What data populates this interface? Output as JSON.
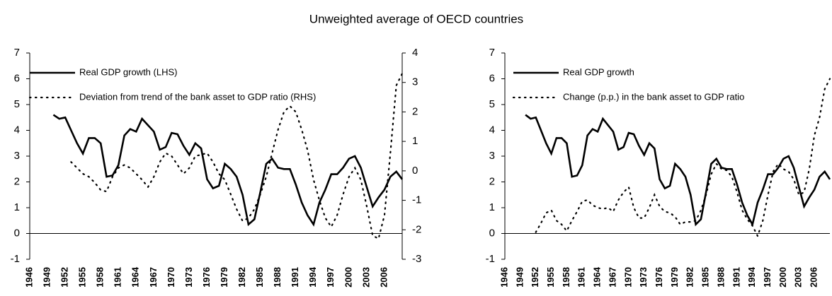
{
  "title": "Unweighted average of OECD countries",
  "chart_data": [
    {
      "type": "line",
      "x": [
        1950,
        1951,
        1952,
        1953,
        1954,
        1955,
        1956,
        1957,
        1958,
        1959,
        1960,
        1961,
        1962,
        1963,
        1964,
        1965,
        1966,
        1967,
        1968,
        1969,
        1970,
        1971,
        1972,
        1973,
        1974,
        1975,
        1976,
        1977,
        1978,
        1979,
        1980,
        1981,
        1982,
        1983,
        1984,
        1985,
        1986,
        1987,
        1988,
        1989,
        1990,
        1991,
        1992,
        1993,
        1994,
        1995,
        1996,
        1997,
        1998,
        1999,
        2000,
        2001,
        2002,
        2003,
        2004,
        2005,
        2006,
        2007,
        2008,
        2009
      ],
      "series": [
        {
          "name": "Real GDP growth (LHS)",
          "color": "#000000",
          "dash": "solid",
          "values": [
            4.6,
            4.45,
            4.5,
            4.0,
            3.5,
            3.1,
            3.7,
            3.7,
            3.5,
            2.2,
            2.25,
            2.65,
            3.8,
            4.05,
            3.95,
            4.45,
            4.2,
            3.95,
            3.25,
            3.35,
            3.9,
            3.85,
            3.4,
            3.05,
            3.5,
            3.3,
            2.1,
            1.75,
            1.85,
            2.7,
            2.5,
            2.2,
            1.5,
            0.35,
            0.55,
            1.6,
            2.7,
            2.9,
            2.55,
            2.5,
            2.5,
            1.9,
            1.2,
            0.7,
            0.35,
            1.2,
            1.7,
            2.3,
            2.3,
            2.55,
            2.9,
            3.0,
            2.55,
            1.8,
            1.05,
            1.4,
            1.7,
            2.2,
            2.4,
            2.1
          ]
        },
        {
          "name": "Deviation from trend of the bank asset to GDP ratio (RHS)",
          "color": "#000000",
          "dash": "dotted",
          "axis": "y2",
          "values": [
            null,
            null,
            null,
            0.3,
            0.1,
            -0.1,
            -0.2,
            -0.4,
            -0.65,
            -0.7,
            -0.2,
            0.1,
            0.2,
            0.1,
            -0.1,
            -0.3,
            -0.55,
            -0.2,
            0.3,
            0.6,
            0.5,
            0.2,
            -0.1,
            0.1,
            0.5,
            0.55,
            0.6,
            0.3,
            -0.1,
            -0.3,
            -0.8,
            -1.3,
            -1.7,
            -1.6,
            -1.3,
            -0.8,
            -0.2,
            0.6,
            1.4,
            2.0,
            2.2,
            2.0,
            1.4,
            0.7,
            -0.3,
            -1.0,
            -1.6,
            -1.9,
            -1.5,
            -0.8,
            -0.2,
            0.1,
            -0.3,
            -1.2,
            -2.2,
            -2.3,
            -1.5,
            0.6,
            2.9,
            3.3
          ]
        }
      ],
      "xlim": [
        1946,
        2009
      ],
      "xticks": [
        1946,
        1949,
        1952,
        1955,
        1958,
        1961,
        1964,
        1967,
        1970,
        1973,
        1976,
        1979,
        1982,
        1985,
        1988,
        1991,
        1994,
        1997,
        2000,
        2003,
        2006
      ],
      "ylim": [
        -1,
        7
      ],
      "yticks": [
        -1,
        0,
        1,
        2,
        3,
        4,
        5,
        6,
        7
      ],
      "y2lim": [
        -3,
        4
      ],
      "y2ticks": [
        -3,
        -2,
        -1,
        0,
        1,
        2,
        3,
        4
      ],
      "legend": "upper left",
      "grid": false
    },
    {
      "type": "line",
      "x": [
        1950,
        1951,
        1952,
        1953,
        1954,
        1955,
        1956,
        1957,
        1958,
        1959,
        1960,
        1961,
        1962,
        1963,
        1964,
        1965,
        1966,
        1967,
        1968,
        1969,
        1970,
        1971,
        1972,
        1973,
        1974,
        1975,
        1976,
        1977,
        1978,
        1979,
        1980,
        1981,
        1982,
        1983,
        1984,
        1985,
        1986,
        1987,
        1988,
        1989,
        1990,
        1991,
        1992,
        1993,
        1994,
        1995,
        1996,
        1997,
        1998,
        1999,
        2000,
        2001,
        2002,
        2003,
        2004,
        2005,
        2006,
        2007,
        2008,
        2009
      ],
      "series": [
        {
          "name": "Real GDP growth",
          "color": "#000000",
          "dash": "solid",
          "values": [
            4.6,
            4.45,
            4.5,
            4.0,
            3.5,
            3.1,
            3.7,
            3.7,
            3.5,
            2.2,
            2.25,
            2.65,
            3.8,
            4.05,
            3.95,
            4.45,
            4.2,
            3.95,
            3.25,
            3.35,
            3.9,
            3.85,
            3.4,
            3.05,
            3.5,
            3.3,
            2.1,
            1.75,
            1.85,
            2.7,
            2.5,
            2.2,
            1.5,
            0.35,
            0.55,
            1.6,
            2.7,
            2.9,
            2.55,
            2.5,
            2.5,
            1.9,
            1.2,
            0.7,
            0.35,
            1.2,
            1.7,
            2.3,
            2.3,
            2.55,
            2.9,
            3.0,
            2.55,
            1.8,
            1.05,
            1.4,
            1.7,
            2.2,
            2.4,
            2.1
          ]
        },
        {
          "name": "Change (p.p.) in the bank asset to GDP ratio",
          "color": "#000000",
          "dash": "dotted",
          "values": [
            null,
            null,
            0.05,
            0.4,
            0.8,
            0.9,
            0.5,
            0.35,
            0.1,
            0.5,
            0.85,
            1.25,
            1.3,
            1.1,
            1.0,
            0.95,
            1.0,
            0.85,
            1.3,
            1.6,
            1.8,
            1.0,
            0.6,
            0.6,
            1.0,
            1.5,
            1.05,
            0.85,
            0.8,
            0.65,
            0.35,
            0.45,
            0.45,
            0.5,
            0.9,
            1.5,
            2.3,
            2.7,
            2.5,
            2.45,
            2.2,
            1.6,
            0.9,
            0.55,
            0.3,
            -0.1,
            0.5,
            1.5,
            2.4,
            2.7,
            2.5,
            2.4,
            2.1,
            1.5,
            1.6,
            2.5,
            3.8,
            4.5,
            5.6,
            6.0
          ]
        }
      ],
      "xlim": [
        1946,
        2009
      ],
      "xticks": [
        1946,
        1949,
        1952,
        1955,
        1958,
        1961,
        1964,
        1967,
        1970,
        1973,
        1976,
        1979,
        1982,
        1985,
        1988,
        1991,
        1994,
        1997,
        2000,
        2003,
        2006
      ],
      "ylim": [
        -1,
        7
      ],
      "yticks": [
        -1,
        0,
        1,
        2,
        3,
        4,
        5,
        6,
        7
      ],
      "legend": "upper left",
      "grid": false
    }
  ]
}
